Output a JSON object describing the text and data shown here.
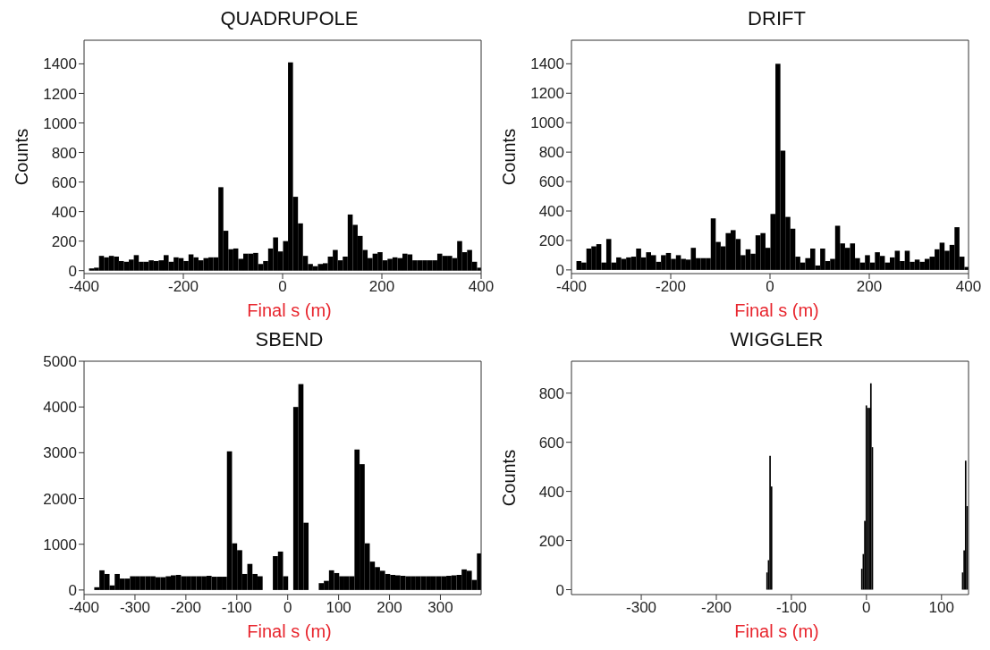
{
  "chart_data": [
    {
      "type": "histogram",
      "title": "QUADRUPOLE",
      "xlabel": "Final s (m)",
      "ylabel": "Counts",
      "color": "#000000",
      "xlim": [
        -400,
        400
      ],
      "xticks": [
        -400,
        -200,
        0,
        200,
        400
      ],
      "ylim": [
        -20,
        1560
      ],
      "yticks": [
        0,
        200,
        400,
        600,
        800,
        1000,
        1200,
        1400
      ],
      "bins": [
        -400,
        -390,
        -380,
        -370,
        -360,
        -350,
        -340,
        -330,
        -320,
        -310,
        -300,
        -290,
        -280,
        -270,
        -260,
        -250,
        -240,
        -230,
        -220,
        -210,
        -200,
        -190,
        -180,
        -170,
        -160,
        -150,
        -140,
        -130,
        -120,
        -110,
        -100,
        -90,
        -80,
        -70,
        -60,
        -50,
        -40,
        -30,
        -20,
        -10,
        0,
        10,
        20,
        30,
        40,
        50,
        60,
        70,
        80,
        90,
        100,
        110,
        120,
        130,
        140,
        150,
        160,
        170,
        180,
        190,
        200,
        210,
        220,
        230,
        240,
        250,
        260,
        270,
        280,
        290,
        300,
        310,
        320,
        330,
        340,
        350,
        360,
        370,
        380,
        390,
        400
      ],
      "values": [
        0,
        15,
        20,
        100,
        90,
        100,
        95,
        65,
        60,
        75,
        105,
        60,
        60,
        70,
        65,
        70,
        105,
        60,
        90,
        85,
        65,
        110,
        90,
        70,
        85,
        90,
        90,
        565,
        270,
        145,
        150,
        80,
        115,
        115,
        120,
        45,
        65,
        150,
        225,
        130,
        200,
        1410,
        500,
        320,
        100,
        45,
        30,
        45,
        50,
        95,
        140,
        70,
        95,
        380,
        310,
        235,
        140,
        85,
        115,
        125,
        70,
        80,
        90,
        85,
        115,
        110,
        70,
        70,
        70,
        70,
        70,
        115,
        100,
        100,
        85,
        200,
        125,
        140,
        60,
        20
      ]
    },
    {
      "type": "histogram",
      "title": "DRIFT",
      "xlabel": "Final s (m)",
      "ylabel": "Counts",
      "color": "#000000",
      "xlim": [
        -400,
        400
      ],
      "xticks": [
        -400,
        -200,
        0,
        200,
        400
      ],
      "ylim": [
        -25,
        1560
      ],
      "yticks": [
        0,
        200,
        400,
        600,
        800,
        1000,
        1200,
        1400
      ],
      "bins": [
        -400,
        -390,
        -380,
        -370,
        -360,
        -350,
        -340,
        -330,
        -320,
        -310,
        -300,
        -290,
        -280,
        -270,
        -260,
        -250,
        -240,
        -230,
        -220,
        -210,
        -200,
        -190,
        -180,
        -170,
        -160,
        -150,
        -140,
        -130,
        -120,
        -110,
        -100,
        -90,
        -80,
        -70,
        -60,
        -50,
        -40,
        -30,
        -20,
        -10,
        0,
        10,
        20,
        30,
        40,
        50,
        60,
        70,
        80,
        90,
        100,
        110,
        120,
        130,
        140,
        150,
        160,
        170,
        180,
        190,
        200,
        210,
        220,
        230,
        240,
        250,
        260,
        270,
        280,
        290,
        300,
        310,
        320,
        330,
        340,
        350,
        360,
        370,
        380,
        390,
        400
      ],
      "values": [
        0,
        60,
        50,
        145,
        160,
        175,
        50,
        210,
        50,
        85,
        75,
        85,
        90,
        145,
        85,
        120,
        100,
        55,
        100,
        115,
        75,
        100,
        75,
        70,
        150,
        80,
        80,
        80,
        350,
        190,
        160,
        250,
        270,
        210,
        100,
        140,
        110,
        235,
        250,
        150,
        380,
        1400,
        810,
        360,
        280,
        90,
        50,
        80,
        145,
        30,
        145,
        60,
        75,
        300,
        180,
        150,
        180,
        80,
        50,
        100,
        50,
        120,
        95,
        50,
        85,
        130,
        60,
        130,
        55,
        70,
        55,
        75,
        90,
        140,
        185,
        130,
        170,
        290,
        90,
        20
      ]
    },
    {
      "type": "histogram",
      "title": "SBEND",
      "xlabel": "Final s (m)",
      "color": "#000000",
      "xlim": [
        -400,
        380
      ],
      "xticks": [
        -400,
        -300,
        -200,
        -100,
        0,
        100,
        200,
        300
      ],
      "ylim": [
        -100,
        5000
      ],
      "yticks": [
        0,
        1000,
        2000,
        3000,
        4000,
        5000
      ],
      "bins": [
        -380,
        -370,
        -360,
        -350,
        -340,
        -330,
        -320,
        -310,
        -300,
        -290,
        -280,
        -270,
        -260,
        -250,
        -240,
        -230,
        -220,
        -210,
        -200,
        -190,
        -180,
        -170,
        -160,
        -150,
        -140,
        -130,
        -120,
        -110,
        -100,
        -90,
        -80,
        -70,
        -60,
        -50,
        -40,
        -30,
        -20,
        -10,
        0,
        10,
        20,
        30,
        40,
        50,
        60,
        70,
        80,
        90,
        100,
        110,
        120,
        130,
        140,
        150,
        160,
        170,
        180,
        190,
        200,
        210,
        220,
        230,
        240,
        250,
        260,
        270,
        280,
        290,
        300,
        310,
        320,
        330,
        340,
        350,
        360,
        370,
        380
      ],
      "values": [
        60,
        430,
        350,
        100,
        350,
        250,
        250,
        300,
        300,
        300,
        300,
        300,
        280,
        280,
        300,
        320,
        330,
        300,
        300,
        300,
        300,
        300,
        310,
        290,
        290,
        290,
        3030,
        1020,
        870,
        350,
        570,
        350,
        300,
        0,
        0,
        740,
        840,
        300,
        0,
        4000,
        4500,
        1470,
        0,
        0,
        150,
        200,
        430,
        370,
        300,
        300,
        300,
        3070,
        2750,
        1020,
        620,
        500,
        420,
        350,
        330,
        320,
        310,
        300,
        300,
        300,
        300,
        300,
        300,
        300,
        300,
        310,
        320,
        330,
        450,
        420,
        220,
        800
      ]
    },
    {
      "type": "histogram",
      "title": "WIGGLER",
      "xlabel": "Final s (m)",
      "ylabel": "Counts",
      "color": "#000000",
      "xlim": [
        -393,
        136
      ],
      "xticks": [
        -300,
        -200,
        -100,
        0,
        100
      ],
      "ylim": [
        -20,
        930
      ],
      "yticks": [
        0,
        200,
        400,
        600,
        800
      ],
      "bins": [
        -134,
        -132,
        -130,
        -128,
        -126,
        -8,
        -6,
        -4,
        -2,
        0,
        2,
        4,
        6,
        8,
        126,
        128,
        130,
        132,
        134
      ],
      "values": [
        70,
        120,
        545,
        420,
        0,
        85,
        145,
        280,
        750,
        740,
        740,
        840,
        580,
        0,
        70,
        160,
        525,
        340
      ]
    }
  ]
}
